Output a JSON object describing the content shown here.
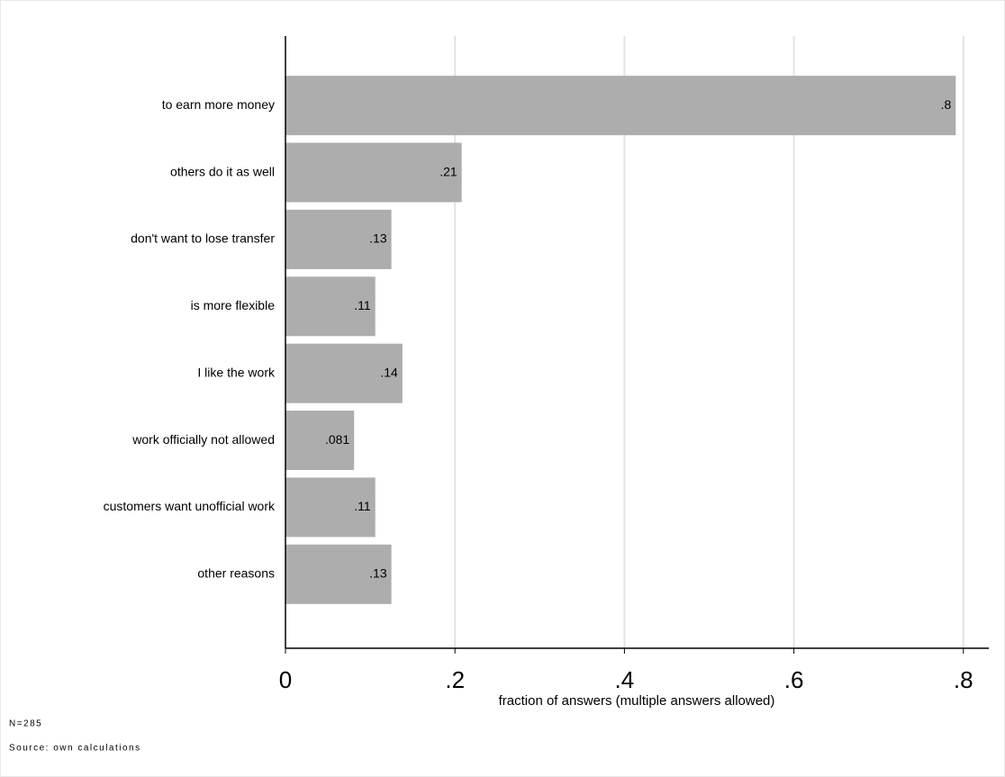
{
  "chart_data": {
    "type": "barh",
    "categories": [
      "to earn more money",
      "others do it as well",
      "don't want to lose transfer",
      "is more flexible",
      "I like the work",
      "work officially not allowed",
      "customers want unofficial work",
      "other reasons"
    ],
    "values": [
      0.791,
      0.208,
      0.125,
      0.106,
      0.138,
      0.081,
      0.106,
      0.125
    ],
    "value_labels": [
      ".8",
      ".21",
      ".13",
      ".11",
      ".14",
      ".081",
      ".11",
      ".13"
    ],
    "color": "#adadad",
    "xlim": [
      0,
      0.83
    ],
    "xticks": [
      0,
      {
        "value": 0.2,
        "label": ".2"
      },
      {
        "value": 0.4,
        "label": ".4"
      },
      {
        "value": 0.6,
        "label": ".6"
      },
      {
        "value": 0.8,
        "label": ".8"
      }
    ],
    "grid": true,
    "xlabel": "fraction of answers (multiple answers allowed)",
    "notes": [
      "N=285",
      "Source: own calculations"
    ]
  }
}
